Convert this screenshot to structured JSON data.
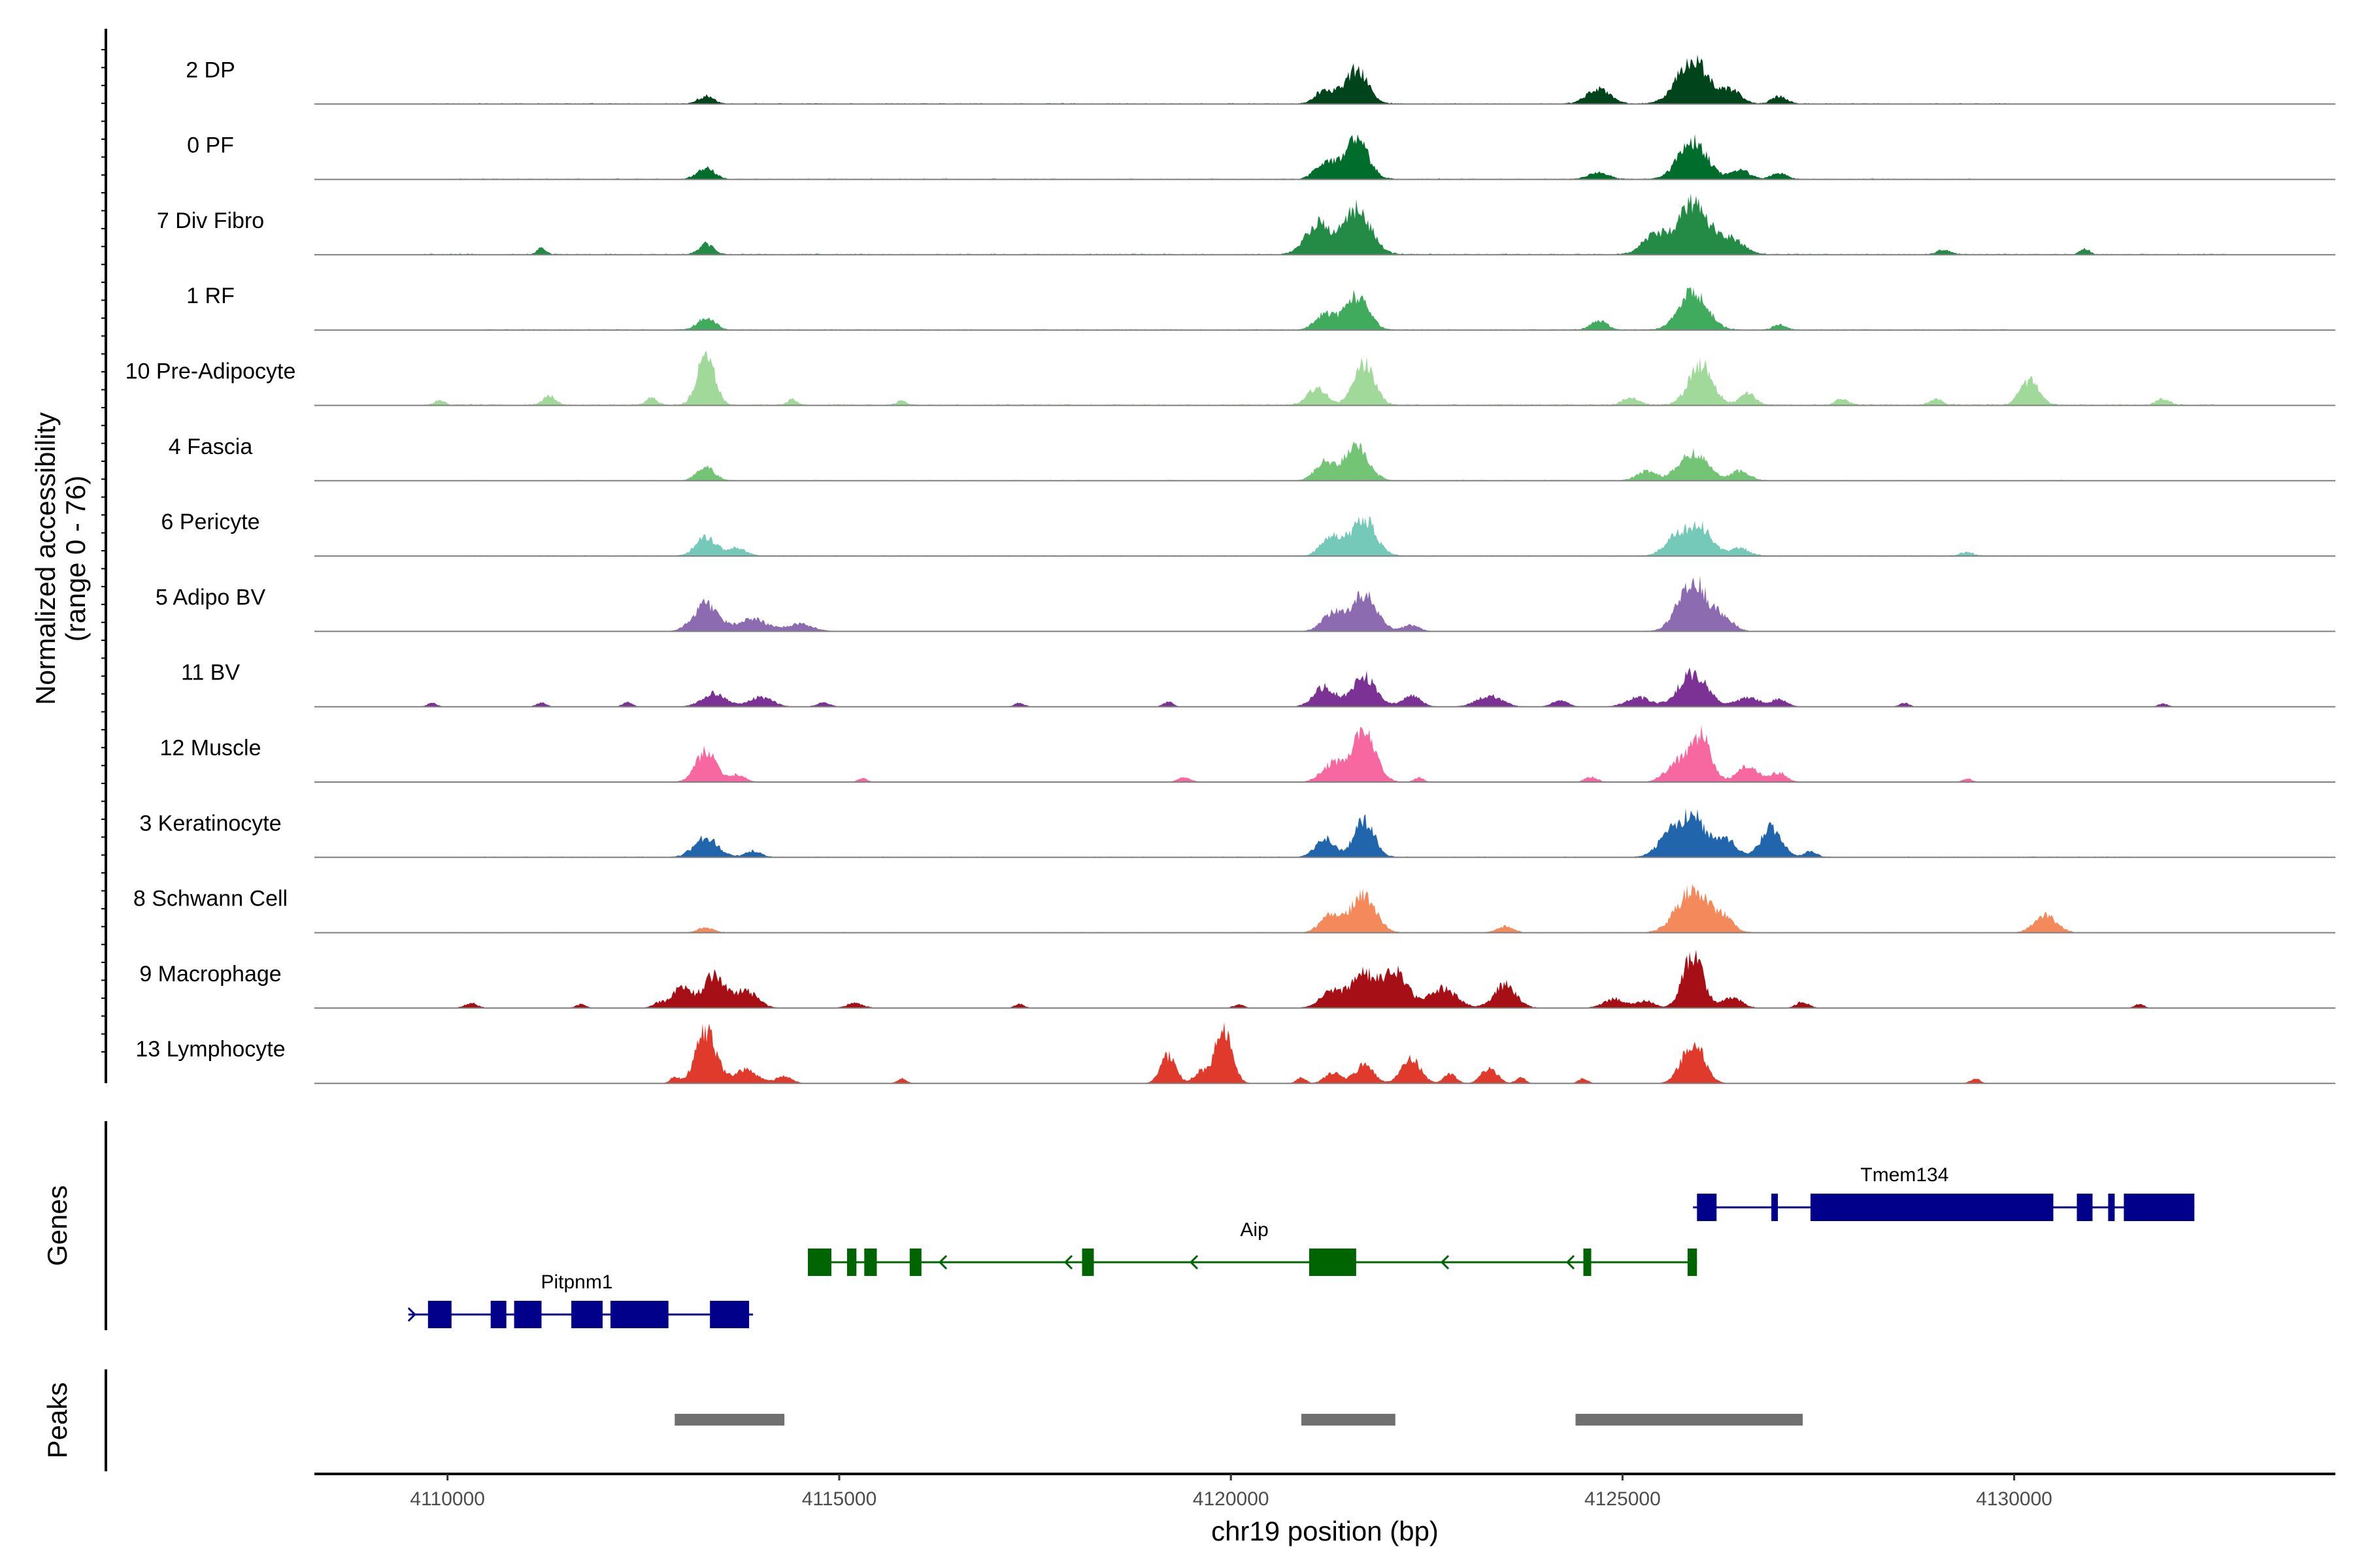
{
  "colors": {
    "axis": "#000000",
    "baseline": "#7f7f7f",
    "peak": "#707070",
    "gene_plus": "#00008b",
    "gene_minus": "#006400"
  },
  "chart_data": {
    "type": "coverage",
    "chromosome": "chr19",
    "x_range": [
      4108300,
      4134100
    ],
    "xlabel": "chr19 position (bp)",
    "ylabel": "Normalized accessibility",
    "ylabel_range": "(range 0 - 76)",
    "y_range": [
      0,
      76
    ],
    "x_ticks": [
      {
        "value": 4110000,
        "label": "4110000"
      },
      {
        "value": 4115000,
        "label": "4115000"
      },
      {
        "value": 4120000,
        "label": "4120000"
      },
      {
        "value": 4125000,
        "label": "4125000"
      },
      {
        "value": 4130000,
        "label": "4130000"
      }
    ],
    "genes_track_label": "Genes",
    "peaks_track_label": "Peaks",
    "tracks": [
      {
        "name": "2 DP",
        "color": "#00441b",
        "noise": 0.5,
        "span": [
          4109800,
          4130000
        ],
        "peaks": [
          [
            4113300,
            0.12,
            100
          ],
          [
            4121200,
            0.22,
            120
          ],
          [
            4121600,
            0.55,
            150
          ],
          [
            4124700,
            0.25,
            150
          ],
          [
            4125900,
            0.72,
            200
          ],
          [
            4126400,
            0.2,
            120
          ],
          [
            4127000,
            0.12,
            100
          ]
        ]
      },
      {
        "name": "0 PF",
        "color": "#006d2c",
        "noise": 0.45,
        "span": [
          4110000,
          4129500
        ],
        "peaks": [
          [
            4113300,
            0.18,
            110
          ],
          [
            4121200,
            0.28,
            120
          ],
          [
            4121600,
            0.65,
            150
          ],
          [
            4124700,
            0.12,
            120
          ],
          [
            4125900,
            0.62,
            180
          ],
          [
            4126500,
            0.15,
            120
          ],
          [
            4127000,
            0.1,
            100
          ]
        ]
      },
      {
        "name": "7 Div Fibro",
        "color": "#238b45",
        "noise": 0.55,
        "span": [
          4109700,
          4132700
        ],
        "peaks": [
          [
            4111200,
            0.1,
            60
          ],
          [
            4113300,
            0.18,
            90
          ],
          [
            4121100,
            0.5,
            150
          ],
          [
            4121600,
            0.75,
            180
          ],
          [
            4125400,
            0.3,
            150
          ],
          [
            4125900,
            0.85,
            200
          ],
          [
            4126400,
            0.25,
            150
          ],
          [
            4129100,
            0.08,
            80
          ],
          [
            4130900,
            0.1,
            60
          ]
        ]
      },
      {
        "name": "1 RF",
        "color": "#41ab5d",
        "noise": 0.45,
        "span": [
          4110500,
          4130000
        ],
        "peaks": [
          [
            4113300,
            0.2,
            110
          ],
          [
            4121200,
            0.25,
            120
          ],
          [
            4121600,
            0.55,
            150
          ],
          [
            4124700,
            0.15,
            100
          ],
          [
            4125900,
            0.62,
            180
          ],
          [
            4127000,
            0.08,
            80
          ]
        ]
      },
      {
        "name": "10 Pre-Adipocyte",
        "color": "#a1d99b",
        "noise": 0.7,
        "span": [
          4109700,
          4132600
        ],
        "peaks": [
          [
            4109900,
            0.08,
            60
          ],
          [
            4111300,
            0.15,
            80
          ],
          [
            4112600,
            0.12,
            70
          ],
          [
            4113300,
            0.85,
            110
          ],
          [
            4114400,
            0.1,
            60
          ],
          [
            4115800,
            0.08,
            60
          ],
          [
            4121100,
            0.28,
            120
          ],
          [
            4121700,
            0.68,
            130
          ],
          [
            4125100,
            0.12,
            100
          ],
          [
            4126000,
            0.68,
            150
          ],
          [
            4126600,
            0.18,
            100
          ],
          [
            4127800,
            0.1,
            80
          ],
          [
            4129000,
            0.1,
            80
          ],
          [
            4130200,
            0.4,
            120
          ],
          [
            4131900,
            0.1,
            80
          ]
        ]
      },
      {
        "name": "4 Fascia",
        "color": "#74c476",
        "noise": 0.45,
        "span": [
          4110300,
          4130700
        ],
        "peaks": [
          [
            4113300,
            0.22,
            110
          ],
          [
            4121200,
            0.3,
            120
          ],
          [
            4121600,
            0.55,
            150
          ],
          [
            4125300,
            0.15,
            120
          ],
          [
            4125900,
            0.45,
            180
          ],
          [
            4126500,
            0.15,
            120
          ]
        ]
      },
      {
        "name": "6 Pericyte",
        "color": "#74c9b8",
        "noise": 0.45,
        "span": [
          4110300,
          4130500
        ],
        "peaks": [
          [
            4113300,
            0.3,
            130
          ],
          [
            4113700,
            0.12,
            120
          ],
          [
            4121300,
            0.3,
            140
          ],
          [
            4121700,
            0.6,
            150
          ],
          [
            4125700,
            0.32,
            150
          ],
          [
            4126000,
            0.45,
            150
          ],
          [
            4126500,
            0.12,
            120
          ],
          [
            4129400,
            0.06,
            80
          ]
        ]
      },
      {
        "name": "5 Adipo BV",
        "color": "#8c6bb1",
        "noise": 0.3,
        "span": [
          4113000,
          4128500
        ],
        "peaks": [
          [
            4113300,
            0.45,
            160
          ],
          [
            4113900,
            0.2,
            180
          ],
          [
            4114500,
            0.12,
            160
          ],
          [
            4121300,
            0.3,
            130
          ],
          [
            4121700,
            0.62,
            160
          ],
          [
            4122300,
            0.1,
            100
          ],
          [
            4125900,
            0.85,
            180
          ],
          [
            4126300,
            0.2,
            120
          ]
        ]
      },
      {
        "name": "11 BV",
        "color": "#7b3294",
        "noise": 0.15,
        "span": [
          4109600,
          4132700
        ],
        "peaks": [
          [
            4109800,
            0.06,
            60
          ],
          [
            4111200,
            0.07,
            60
          ],
          [
            4112300,
            0.08,
            60
          ],
          [
            4113400,
            0.22,
            150
          ],
          [
            4114000,
            0.16,
            150
          ],
          [
            4114800,
            0.07,
            80
          ],
          [
            4117300,
            0.06,
            60
          ],
          [
            4119200,
            0.08,
            60
          ],
          [
            4121200,
            0.32,
            140
          ],
          [
            4121700,
            0.5,
            150
          ],
          [
            4122300,
            0.18,
            120
          ],
          [
            4123300,
            0.18,
            160
          ],
          [
            4124200,
            0.1,
            100
          ],
          [
            4125200,
            0.15,
            150
          ],
          [
            4125900,
            0.55,
            180
          ],
          [
            4126600,
            0.15,
            150
          ],
          [
            4127000,
            0.12,
            100
          ],
          [
            4128600,
            0.06,
            60
          ],
          [
            4131900,
            0.05,
            60
          ]
        ]
      },
      {
        "name": "12 Muscle",
        "color": "#f768a1",
        "noise": 0.1,
        "span": [
          4112500,
          4130000
        ],
        "peaks": [
          [
            4113300,
            0.5,
            130
          ],
          [
            4113700,
            0.12,
            100
          ],
          [
            4115300,
            0.06,
            60
          ],
          [
            4119400,
            0.08,
            80
          ],
          [
            4121300,
            0.3,
            140
          ],
          [
            4121700,
            0.82,
            150
          ],
          [
            4122400,
            0.07,
            60
          ],
          [
            4124600,
            0.08,
            80
          ],
          [
            4125700,
            0.3,
            150
          ],
          [
            4126000,
            0.75,
            130
          ],
          [
            4126600,
            0.25,
            140
          ],
          [
            4127000,
            0.15,
            100
          ],
          [
            4129400,
            0.06,
            60
          ]
        ]
      },
      {
        "name": "3 Keratinocyte",
        "color": "#2166ac",
        "noise": 0.4,
        "span": [
          4110000,
          4131500
        ],
        "peaks": [
          [
            4113300,
            0.32,
            150
          ],
          [
            4113900,
            0.1,
            100
          ],
          [
            4121200,
            0.3,
            120
          ],
          [
            4121700,
            0.6,
            130
          ],
          [
            4125600,
            0.35,
            150
          ],
          [
            4125900,
            0.65,
            150
          ],
          [
            4126300,
            0.3,
            150
          ],
          [
            4126900,
            0.48,
            130
          ],
          [
            4127400,
            0.1,
            80
          ]
        ]
      },
      {
        "name": "8 Schwann Cell",
        "color": "#f4895c",
        "noise": 0.35,
        "span": [
          4110000,
          4131500
        ],
        "peaks": [
          [
            4113300,
            0.08,
            100
          ],
          [
            4121300,
            0.3,
            140
          ],
          [
            4121700,
            0.62,
            150
          ],
          [
            4123500,
            0.1,
            100
          ],
          [
            4125900,
            0.7,
            200
          ],
          [
            4126300,
            0.2,
            120
          ],
          [
            4130400,
            0.28,
            140
          ]
        ]
      },
      {
        "name": "9 Macrophage",
        "color": "#a50f15",
        "noise": 0.22,
        "span": [
          4109900,
          4131700
        ],
        "peaks": [
          [
            4110300,
            0.08,
            80
          ],
          [
            4111700,
            0.06,
            60
          ],
          [
            4112700,
            0.08,
            80
          ],
          [
            4113000,
            0.35,
            120
          ],
          [
            4113400,
            0.55,
            130
          ],
          [
            4113800,
            0.28,
            150
          ],
          [
            4115200,
            0.08,
            100
          ],
          [
            4117300,
            0.06,
            60
          ],
          [
            4120100,
            0.06,
            60
          ],
          [
            4121300,
            0.28,
            150
          ],
          [
            4121700,
            0.55,
            150
          ],
          [
            4122100,
            0.6,
            150
          ],
          [
            4122700,
            0.32,
            180
          ],
          [
            4123500,
            0.38,
            140
          ],
          [
            4124900,
            0.15,
            140
          ],
          [
            4125300,
            0.12,
            100
          ],
          [
            4125900,
            0.85,
            130
          ],
          [
            4126400,
            0.18,
            120
          ],
          [
            4127300,
            0.1,
            80
          ],
          [
            4131600,
            0.06,
            60
          ]
        ]
      },
      {
        "name": "13 Lymphocyte",
        "color": "#e03a2d",
        "noise": 0,
        "span": [
          4112800,
          4129600
        ],
        "peaks": [
          [
            4112900,
            0.1,
            60
          ],
          [
            4113300,
            0.85,
            130
          ],
          [
            4113800,
            0.22,
            150
          ],
          [
            4114300,
            0.12,
            100
          ],
          [
            4115800,
            0.08,
            60
          ],
          [
            4119200,
            0.45,
            100
          ],
          [
            4119600,
            0.18,
            80
          ],
          [
            4119900,
            0.88,
            110
          ],
          [
            4120900,
            0.1,
            60
          ],
          [
            4121300,
            0.18,
            100
          ],
          [
            4121700,
            0.3,
            120
          ],
          [
            4122300,
            0.42,
            120
          ],
          [
            4122800,
            0.15,
            80
          ],
          [
            4123300,
            0.25,
            100
          ],
          [
            4123700,
            0.1,
            60
          ],
          [
            4124500,
            0.08,
            60
          ],
          [
            4125900,
            0.68,
            140
          ],
          [
            4129500,
            0.08,
            60
          ]
        ]
      }
    ],
    "genes": [
      {
        "name": "Tmem134",
        "strand": "+",
        "start": 4125900,
        "end": 4132300,
        "exons": [
          [
            4125950,
            4126200
          ],
          [
            4126900,
            4126980
          ],
          [
            4127400,
            4130500
          ],
          [
            4130800,
            4131000
          ],
          [
            4131200,
            4131250
          ],
          [
            4131400,
            4132300
          ]
        ]
      },
      {
        "name": "Aip",
        "strand": "-",
        "start": 4114600,
        "end": 4125950,
        "exons": [
          [
            4114600,
            4114900
          ],
          [
            4115100,
            4115220
          ],
          [
            4115320,
            4115480
          ],
          [
            4115900,
            4116050
          ],
          [
            4118100,
            4118250
          ],
          [
            4121000,
            4121600
          ],
          [
            4124500,
            4124600
          ],
          [
            4125830,
            4125950
          ]
        ]
      },
      {
        "name": "Pitpnm1",
        "strand": "+",
        "start": 4109500,
        "end": 4113900,
        "exons": [
          [
            4109750,
            4110050
          ],
          [
            4110550,
            4110750
          ],
          [
            4110850,
            4111200
          ],
          [
            4111580,
            4111980
          ],
          [
            4112080,
            4112820
          ],
          [
            4113350,
            4113850
          ]
        ]
      }
    ],
    "peaks": [
      {
        "start": 4112900,
        "end": 4114300
      },
      {
        "start": 4120900,
        "end": 4122100
      },
      {
        "start": 4124400,
        "end": 4127300
      }
    ]
  }
}
